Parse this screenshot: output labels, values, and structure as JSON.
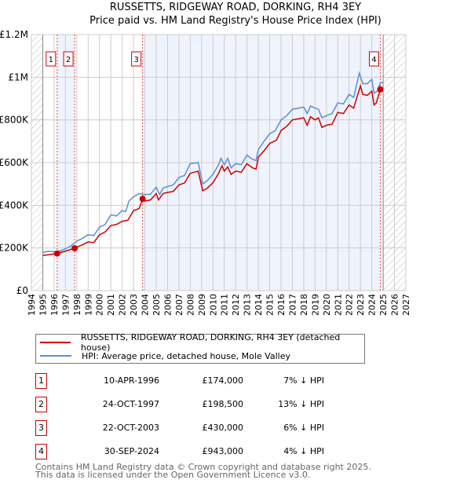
{
  "chart_data": {
    "type": "line",
    "title": "RUSSETTS, RIDGEWAY ROAD, DORKING, RH4 3EY",
    "subtitle": "Price paid vs. HM Land Registry's House Price Index (HPI)",
    "xlim": [
      1994,
      2027
    ],
    "ylim": [
      0,
      1200000
    ],
    "x_ticks": [
      "1994",
      "1995",
      "1996",
      "1997",
      "1998",
      "1999",
      "2000",
      "2001",
      "2002",
      "2003",
      "2004",
      "2005",
      "2006",
      "2007",
      "2008",
      "2009",
      "2010",
      "2011",
      "2012",
      "2013",
      "2014",
      "2015",
      "2016",
      "2017",
      "2018",
      "2019",
      "2020",
      "2021",
      "2022",
      "2023",
      "2024",
      "2025",
      "2026",
      "2027"
    ],
    "y_ticks": [
      {
        "v": 0,
        "label": "£0"
      },
      {
        "v": 200000,
        "label": "£200K"
      },
      {
        "v": 400000,
        "label": "£400K"
      },
      {
        "v": 600000,
        "label": "£600K"
      },
      {
        "v": 800000,
        "label": "£800K"
      },
      {
        "v": 1000000,
        "label": "£1M"
      },
      {
        "v": 1200000,
        "label": "£1.2M"
      }
    ],
    "grid": true,
    "hatched_ranges": [
      [
        1994,
        1995
      ],
      [
        2025,
        2027
      ]
    ],
    "shaded_ranges": [
      [
        1996.27,
        1997.81
      ],
      [
        2003.8,
        2024.75
      ]
    ],
    "series": [
      {
        "name": "RUSSETTS, RIDGEWAY ROAD, DORKING, RH4 3EY (detached house)",
        "color": "#cc0000",
        "points": [
          [
            1995,
            165000
          ],
          [
            1995.5,
            168000
          ],
          [
            1996,
            172000
          ],
          [
            1996.27,
            174000
          ],
          [
            1997,
            185000
          ],
          [
            1997.81,
            198500
          ],
          [
            1998.5,
            215000
          ],
          [
            1999,
            228000
          ],
          [
            1999.5,
            225000
          ],
          [
            2000,
            262000
          ],
          [
            2000.5,
            275000
          ],
          [
            2001,
            305000
          ],
          [
            2001.5,
            310000
          ],
          [
            2002,
            325000
          ],
          [
            2002.5,
            330000
          ],
          [
            2003,
            375000
          ],
          [
            2003.5,
            385000
          ],
          [
            2003.8,
            430000
          ],
          [
            2004,
            420000
          ],
          [
            2004.5,
            425000
          ],
          [
            2005,
            455000
          ],
          [
            2005.2,
            425000
          ],
          [
            2005.6,
            455000
          ],
          [
            2006,
            460000
          ],
          [
            2006.5,
            465000
          ],
          [
            2007,
            495000
          ],
          [
            2007.5,
            505000
          ],
          [
            2008,
            550000
          ],
          [
            2008.7,
            560000
          ],
          [
            2009.1,
            468000
          ],
          [
            2009.5,
            480000
          ],
          [
            2010,
            505000
          ],
          [
            2010.5,
            550000
          ],
          [
            2010.8,
            585000
          ],
          [
            2011,
            560000
          ],
          [
            2011.3,
            580000
          ],
          [
            2011.6,
            545000
          ],
          [
            2012,
            560000
          ],
          [
            2012.5,
            555000
          ],
          [
            2013,
            595000
          ],
          [
            2013.5,
            575000
          ],
          [
            2013.8,
            570000
          ],
          [
            2014,
            625000
          ],
          [
            2014.5,
            655000
          ],
          [
            2015,
            690000
          ],
          [
            2015.6,
            705000
          ],
          [
            2016,
            750000
          ],
          [
            2016.5,
            770000
          ],
          [
            2017,
            800000
          ],
          [
            2017.5,
            805000
          ],
          [
            2018,
            810000
          ],
          [
            2018.3,
            775000
          ],
          [
            2018.6,
            815000
          ],
          [
            2019,
            800000
          ],
          [
            2019.3,
            810000
          ],
          [
            2019.6,
            765000
          ],
          [
            2020,
            775000
          ],
          [
            2020.5,
            780000
          ],
          [
            2021,
            835000
          ],
          [
            2021.5,
            830000
          ],
          [
            2022,
            870000
          ],
          [
            2022.4,
            855000
          ],
          [
            2023,
            960000
          ],
          [
            2023.2,
            920000
          ],
          [
            2023.6,
            915000
          ],
          [
            2024,
            935000
          ],
          [
            2024.2,
            870000
          ],
          [
            2024.4,
            880000
          ],
          [
            2024.75,
            943000
          ],
          [
            2025,
            935000
          ]
        ]
      },
      {
        "name": "HPI: Average price, detached house, Mole Valley",
        "color": "#5b8ed6",
        "points": [
          [
            1995,
            178000
          ],
          [
            1995.5,
            185000
          ],
          [
            1996,
            182000
          ],
          [
            1996.5,
            185000
          ],
          [
            1997,
            196000
          ],
          [
            1997.5,
            210000
          ],
          [
            1998,
            232000
          ],
          [
            1998.5,
            245000
          ],
          [
            1999,
            262000
          ],
          [
            1999.5,
            258000
          ],
          [
            2000,
            298000
          ],
          [
            2000.5,
            310000
          ],
          [
            2001,
            355000
          ],
          [
            2001.5,
            350000
          ],
          [
            2002,
            375000
          ],
          [
            2002.3,
            370000
          ],
          [
            2002.6,
            420000
          ],
          [
            2003,
            440000
          ],
          [
            2003.5,
            455000
          ],
          [
            2004,
            450000
          ],
          [
            2004.5,
            452000
          ],
          [
            2005,
            485000
          ],
          [
            2005.3,
            450000
          ],
          [
            2005.6,
            480000
          ],
          [
            2006,
            488000
          ],
          [
            2006.5,
            495000
          ],
          [
            2007,
            530000
          ],
          [
            2007.5,
            540000
          ],
          [
            2008,
            595000
          ],
          [
            2008.7,
            600000
          ],
          [
            2009.1,
            500000
          ],
          [
            2009.5,
            515000
          ],
          [
            2010,
            545000
          ],
          [
            2010.5,
            590000
          ],
          [
            2010.7,
            620000
          ],
          [
            2011,
            590000
          ],
          [
            2011.3,
            620000
          ],
          [
            2011.6,
            575000
          ],
          [
            2012,
            595000
          ],
          [
            2012.5,
            590000
          ],
          [
            2013,
            635000
          ],
          [
            2013.5,
            615000
          ],
          [
            2013.8,
            610000
          ],
          [
            2014,
            660000
          ],
          [
            2014.5,
            700000
          ],
          [
            2015,
            735000
          ],
          [
            2015.5,
            750000
          ],
          [
            2016,
            800000
          ],
          [
            2016.5,
            820000
          ],
          [
            2017,
            850000
          ],
          [
            2017.5,
            855000
          ],
          [
            2018,
            860000
          ],
          [
            2018.3,
            830000
          ],
          [
            2018.6,
            865000
          ],
          [
            2019,
            855000
          ],
          [
            2019.3,
            850000
          ],
          [
            2019.6,
            810000
          ],
          [
            2020,
            820000
          ],
          [
            2020.5,
            830000
          ],
          [
            2021,
            880000
          ],
          [
            2021.5,
            875000
          ],
          [
            2022,
            920000
          ],
          [
            2022.4,
            905000
          ],
          [
            2022.9,
            1020000
          ],
          [
            2023.2,
            970000
          ],
          [
            2023.6,
            970000
          ],
          [
            2024,
            990000
          ],
          [
            2024.2,
            925000
          ],
          [
            2024.5,
            935000
          ],
          [
            2024.75,
            975000
          ],
          [
            2025,
            975000
          ]
        ]
      }
    ],
    "sales": [
      {
        "n": "1",
        "x": 1996.27,
        "y": 174000,
        "date": "10-APR-1996",
        "price": "£174,000",
        "hpi": "7% ↓ HPI"
      },
      {
        "n": "2",
        "x": 1997.81,
        "y": 198500,
        "date": "24-OCT-1997",
        "price": "£198,500",
        "hpi": "13% ↓ HPI"
      },
      {
        "n": "3",
        "x": 2003.8,
        "y": 430000,
        "date": "22-OCT-2003",
        "price": "£430,000",
        "hpi": "6% ↓ HPI"
      },
      {
        "n": "4",
        "x": 2024.75,
        "y": 943000,
        "date": "30-SEP-2024",
        "price": "£943,000",
        "hpi": "4% ↓ HPI"
      }
    ],
    "legend_position": "below"
  },
  "footer": [
    "Contains HM Land Registry data © Crown copyright and database right 2025.",
    "This data is licensed under the Open Government Licence v3.0."
  ]
}
